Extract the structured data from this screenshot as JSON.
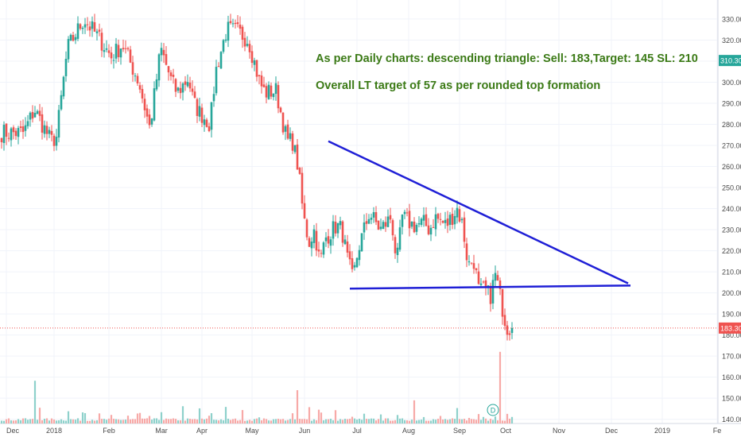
{
  "chart_data": {
    "type": "candlestick",
    "title": "",
    "ylim": [
      138,
      336
    ],
    "y_ticks": [
      "330.00",
      "320.00",
      "310.00",
      "300.00",
      "290.00",
      "280.00",
      "270.00",
      "260.00",
      "250.00",
      "240.00",
      "230.00",
      "220.00",
      "210.00",
      "200.00",
      "190.00",
      "180.00",
      "170.00",
      "160.00",
      "150.00",
      "140.00"
    ],
    "x_ticks": [
      "Dec",
      "2018",
      "Feb",
      "Mar",
      "Apr",
      "May",
      "Jun",
      "Jul",
      "Aug",
      "Sep",
      "Oct",
      "Nov",
      "Dec",
      "2019",
      "Fe"
    ],
    "price_path": [
      [
        0,
        276
      ],
      [
        4,
        276
      ],
      [
        6,
        287
      ],
      [
        9,
        272
      ],
      [
        10,
        274
      ],
      [
        12,
        316
      ],
      [
        15,
        330
      ],
      [
        18,
        320
      ],
      [
        20,
        312
      ],
      [
        22,
        318
      ],
      [
        25,
        300
      ],
      [
        27,
        278
      ],
      [
        29,
        316
      ],
      [
        31,
        300
      ],
      [
        32,
        295
      ],
      [
        34,
        302
      ],
      [
        35,
        290
      ],
      [
        36,
        286
      ],
      [
        38,
        280
      ],
      [
        39,
        305
      ],
      [
        41,
        325
      ],
      [
        43,
        324
      ],
      [
        45,
        320
      ],
      [
        47,
        300
      ],
      [
        48,
        295
      ],
      [
        50,
        296
      ],
      [
        52,
        272
      ],
      [
        53,
        272
      ],
      [
        54,
        260
      ],
      [
        55,
        236
      ],
      [
        56,
        224
      ],
      [
        57,
        230
      ],
      [
        58,
        214
      ],
      [
        59,
        226
      ],
      [
        61,
        232
      ],
      [
        62,
        230
      ],
      [
        63,
        216
      ],
      [
        64,
        206
      ],
      [
        65,
        221
      ],
      [
        67,
        238
      ],
      [
        69,
        230
      ],
      [
        71,
        236
      ],
      [
        72,
        214
      ],
      [
        73,
        236
      ],
      [
        75,
        232
      ],
      [
        77,
        233
      ],
      [
        78,
        230
      ],
      [
        79,
        236
      ],
      [
        81,
        232
      ],
      [
        83,
        240
      ],
      [
        84,
        232
      ],
      [
        85,
        213
      ],
      [
        86,
        216
      ],
      [
        87,
        200
      ],
      [
        88,
        202
      ],
      [
        89,
        198
      ],
      [
        90,
        209
      ],
      [
        91,
        196
      ],
      [
        92,
        184
      ],
      [
        93,
        183.3
      ]
    ],
    "volume_heights": [
      [
        0,
        6
      ],
      [
        4,
        8
      ],
      [
        6,
        70
      ],
      [
        7,
        34
      ],
      [
        12,
        22
      ],
      [
        15,
        18
      ],
      [
        18,
        12
      ],
      [
        20,
        10
      ],
      [
        23,
        12
      ],
      [
        25,
        14
      ],
      [
        27,
        12
      ],
      [
        29,
        24
      ],
      [
        33,
        22
      ],
      [
        36,
        24
      ],
      [
        38,
        14
      ],
      [
        41,
        20
      ],
      [
        44,
        16
      ],
      [
        47,
        12
      ],
      [
        50,
        10
      ],
      [
        53,
        12
      ],
      [
        54,
        48
      ],
      [
        56,
        34
      ],
      [
        58,
        20
      ],
      [
        61,
        16
      ],
      [
        64,
        14
      ],
      [
        66,
        12
      ],
      [
        69,
        18
      ],
      [
        72,
        10
      ],
      [
        75,
        34
      ],
      [
        77,
        12
      ],
      [
        80,
        10
      ],
      [
        83,
        18
      ],
      [
        85,
        12
      ],
      [
        87,
        14
      ],
      [
        88,
        10
      ],
      [
        89,
        10
      ],
      [
        90,
        12
      ],
      [
        91,
        100
      ],
      [
        92,
        22
      ],
      [
        93,
        8
      ]
    ],
    "last_price": "183.30",
    "price_marker": "310.30",
    "event_marker": "D",
    "annotations": [
      "As per Daily charts: descending triangle: Sell: 183,Target: 145  SL: 210",
      "Overall LT target of 57 as per rounded top formation"
    ],
    "triangle": {
      "upper_line": {
        "from": 272,
        "to": 204.5
      },
      "lower_line": {
        "from": 202,
        "to": 203.5
      }
    },
    "colors": {
      "up": "#26a69a",
      "down": "#ef5350",
      "up_volume": "#8ed1cb",
      "down_volume": "#f7a9a7",
      "trendline": "#1f1fd6",
      "annotation": "#3b7a16",
      "last_price_line": "#ef5350",
      "price_marker_bg": "#26a69a",
      "axis_text": "#4a4a4a",
      "grid": "#f0f3fa"
    },
    "grid": true
  }
}
